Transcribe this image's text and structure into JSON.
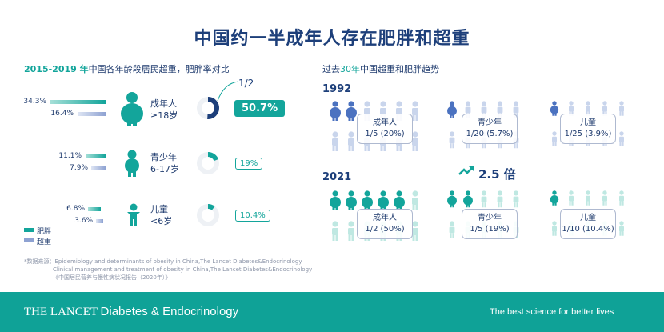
{
  "title": "中国约一半成年人存在肥胖和超重",
  "left": {
    "heading_highlight": "2015-2019 年",
    "heading_rest": "中国各年龄段居民超重，肥胖率对比",
    "groups": [
      {
        "label": "成年人",
        "range": "≥18岁",
        "obese_pct": "34.3%",
        "overweight_pct": "16.4%",
        "total": "50.7%",
        "total_frac": 0.507
      },
      {
        "label": "青少年",
        "range": "6-17岁",
        "obese_pct": "11.1%",
        "overweight_pct": "7.9%",
        "total": "19%",
        "total_frac": 0.19
      },
      {
        "label": "儿童",
        "range": "<6岁",
        "obese_pct": "6.8%",
        "overweight_pct": "3.6%",
        "total": "10.4%",
        "total_frac": 0.104
      }
    ],
    "half_note": "1/2",
    "legend_obese": "肥胖",
    "legend_overweight": "超重"
  },
  "right": {
    "heading_pre": "过去",
    "heading_highlight": "30年",
    "heading_rest": "中国超重和肥胖趋势",
    "year1": "1992",
    "year2": "2021",
    "ratio": "2.5 倍",
    "boxes1992": [
      {
        "label": "成年人",
        "value": "1/5 (20%)"
      },
      {
        "label": "青少年",
        "value": "1/20 (5.7%)"
      },
      {
        "label": "儿童",
        "value": "1/25 (3.9%)"
      }
    ],
    "boxes2021": [
      {
        "label": "成年人",
        "value": "1/2 (50%)"
      },
      {
        "label": "青少年",
        "value": "1/5 (19%)"
      },
      {
        "label": "儿童",
        "value": "1/10 (10.4%)"
      }
    ]
  },
  "footnote": {
    "line1": "*数据来源：Epidemiology and determinants of obesity in China,The Lancet Diabetes&Endocrinology",
    "line2": "Clinical management and treatment of obesity in China,The Lancet Diabetes&Endocrinology",
    "line3": "《中国居民营养与慢性病状况报告（2020年）》"
  },
  "footer": {
    "brand_main": "THE LANCET",
    "brand_sub": "Diabetes & Endocrinology",
    "tagline": "The best science for better lives"
  },
  "colors": {
    "obese": "#13a59b",
    "overweight": "#8ea2d2",
    "dark": "#1d3f7a"
  }
}
